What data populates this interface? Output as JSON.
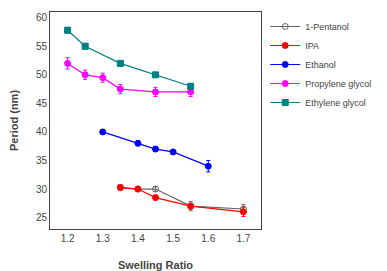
{
  "chart_data": {
    "type": "line",
    "xlabel": "Swelling Ratio",
    "ylabel": "Period (nm)",
    "xlim": [
      1.15,
      1.75
    ],
    "ylim": [
      23,
      61
    ],
    "xticks": [
      1.2,
      1.3,
      1.4,
      1.5,
      1.6,
      1.7
    ],
    "yticks": [
      25,
      30,
      35,
      40,
      45,
      50,
      55,
      60
    ],
    "grid": false,
    "legend": "upper right",
    "series": [
      {
        "name": "1-Pentanol",
        "color": "#666666",
        "marker": "circle-open",
        "x": [
          1.35,
          1.4,
          1.45,
          1.55,
          1.7
        ],
        "values": [
          30.2,
          30.0,
          30.0,
          27.0,
          26.5
        ],
        "yerr": [
          0.4,
          0.4,
          0.4,
          0.8,
          0.8
        ]
      },
      {
        "name": "IPA",
        "color": "#ff0000",
        "marker": "circle",
        "x": [
          1.35,
          1.4,
          1.45,
          1.55,
          1.7
        ],
        "values": [
          30.3,
          30.0,
          28.5,
          27.0,
          26.0
        ],
        "yerr": [
          0.4,
          0.4,
          0.4,
          0.5,
          0.8
        ]
      },
      {
        "name": "Ethanol",
        "color": "#0000ff",
        "marker": "circle",
        "x": [
          1.3,
          1.4,
          1.45,
          1.5,
          1.6
        ],
        "values": [
          40.0,
          38.0,
          37.0,
          36.5,
          34.0
        ],
        "yerr": [
          0.4,
          0.4,
          0.4,
          0.4,
          1.0
        ]
      },
      {
        "name": "Propylene glycol",
        "color": "#ff00ff",
        "marker": "circle",
        "x": [
          1.2,
          1.25,
          1.3,
          1.35,
          1.45,
          1.55
        ],
        "values": [
          52.0,
          50.0,
          49.5,
          47.5,
          47.0,
          47.0
        ],
        "yerr": [
          1.0,
          0.8,
          0.8,
          0.8,
          0.8,
          0.8
        ]
      },
      {
        "name": "Ethylene glycol",
        "color": "#008080",
        "marker": "square",
        "x": [
          1.2,
          1.25,
          1.35,
          1.45,
          1.55
        ],
        "values": [
          57.8,
          55.0,
          52.0,
          50.0,
          48.0
        ],
        "yerr": [
          0.5,
          0.5,
          0.5,
          0.4,
          0.4
        ]
      }
    ]
  }
}
